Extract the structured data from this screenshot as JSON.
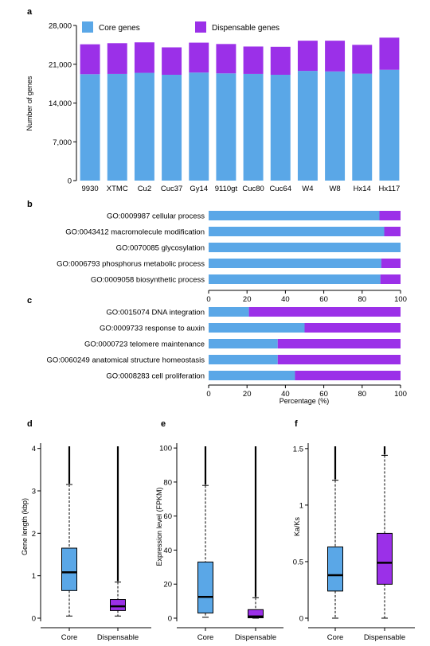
{
  "colors": {
    "core": "#5AA7E7",
    "dispensable": "#9B30E8",
    "outlier": "#000000"
  },
  "panels": {
    "a": "a",
    "b": "b",
    "c": "c",
    "d": "d",
    "e": "e",
    "f": "f"
  },
  "chart_data": [
    {
      "id": "a",
      "type": "bar",
      "stacked": true,
      "categories": [
        "9930",
        "XTMC",
        "Cu2",
        "Cuc37",
        "Gy14",
        "9110gt",
        "Cuc80",
        "Cuc64",
        "W4",
        "W8",
        "Hx14",
        "Hx117"
      ],
      "series": [
        {
          "name": "Core genes",
          "values": [
            19200,
            19250,
            19450,
            19100,
            19500,
            19350,
            19250,
            19100,
            19800,
            19700,
            19300,
            20000
          ]
        },
        {
          "name": "Dispensable genes",
          "values": [
            5400,
            5550,
            5500,
            4950,
            5400,
            5300,
            4950,
            5050,
            5450,
            5550,
            5200,
            5800
          ]
        }
      ],
      "ylabel": "Number of genes",
      "ylim": [
        0,
        28000
      ],
      "yticks": [
        0,
        7000,
        14000,
        21000,
        28000
      ],
      "ytick_labels": [
        "0",
        "7,000",
        "14,000",
        "21,000",
        "28,000"
      ],
      "legend": "top"
    },
    {
      "id": "b",
      "type": "bar",
      "orientation": "horizontal",
      "stacked": true,
      "categories": [
        "GO:0009987 cellular process",
        "GO:0043412 macromolecule modification",
        "GO:0070085 glycosylation",
        "GO:0006793 phosphorus metabolic process",
        "GO:0009058 biosynthetic process"
      ],
      "series": [
        {
          "values": [
            89,
            91.5,
            100,
            90,
            89.5
          ]
        },
        {
          "values": [
            11,
            8.5,
            0,
            10,
            10.5
          ]
        }
      ],
      "xlim": [
        0,
        100
      ],
      "xticks": [
        0,
        20,
        40,
        60,
        80,
        100
      ]
    },
    {
      "id": "c",
      "type": "bar",
      "orientation": "horizontal",
      "stacked": true,
      "categories": [
        "GO:0015074 DNA integration",
        "GO:0009733 response to auxin",
        "GO:0000723 telomere maintenance",
        "GO:0060249 anatomical structure homeostasis",
        "GO:0008283 cell proliferation"
      ],
      "series": [
        {
          "values": [
            21,
            50,
            36,
            36,
            45
          ]
        },
        {
          "values": [
            79,
            50,
            64,
            64,
            55
          ]
        }
      ],
      "xlabel": "Percentage (%)",
      "xlim": [
        0,
        100
      ],
      "xticks": [
        0,
        20,
        40,
        60,
        80,
        100
      ]
    },
    {
      "id": "d",
      "type": "box",
      "categories": [
        "Core",
        "Dispensable"
      ],
      "boxes": [
        {
          "min": 0.05,
          "q1": 0.65,
          "median": 1.08,
          "q3": 1.65,
          "max": 3.15,
          "outlier_top": 4.05
        },
        {
          "min": 0.05,
          "q1": 0.18,
          "median": 0.28,
          "q3": 0.44,
          "max": 0.85,
          "outlier_top": 4.05
        }
      ],
      "ylabel": "Gene length (kbp)",
      "ylim": [
        0,
        4.05
      ],
      "yticks": [
        0,
        1,
        2,
        3,
        4
      ]
    },
    {
      "id": "e",
      "type": "box",
      "categories": [
        "Core",
        "Dispensable"
      ],
      "boxes": [
        {
          "min": 0.5,
          "q1": 3,
          "median": 12.5,
          "q3": 33,
          "max": 78,
          "outlier_top": 101
        },
        {
          "min": 0,
          "q1": 0.2,
          "median": 1,
          "q3": 5,
          "max": 12,
          "outlier_top": 101
        }
      ],
      "ylabel": "Expression level (FPKM)",
      "ylim": [
        0,
        101
      ],
      "yticks": [
        0,
        20,
        40,
        60,
        80,
        100
      ]
    },
    {
      "id": "f",
      "type": "box",
      "categories": [
        "Core",
        "Dispensable"
      ],
      "boxes": [
        {
          "min": 0,
          "q1": 0.24,
          "median": 0.38,
          "q3": 0.63,
          "max": 1.22,
          "outlier_top": 1.52
        },
        {
          "min": 0,
          "q1": 0.3,
          "median": 0.49,
          "q3": 0.75,
          "max": 1.44,
          "outlier_top": 1.52
        }
      ],
      "ylabel": "Ka/Ks",
      "ylim": [
        0,
        1.52
      ],
      "yticks": [
        0,
        0.5,
        1,
        1.5
      ],
      "ytick_labels": [
        "0",
        "0.5",
        "1",
        "1.5"
      ]
    }
  ]
}
